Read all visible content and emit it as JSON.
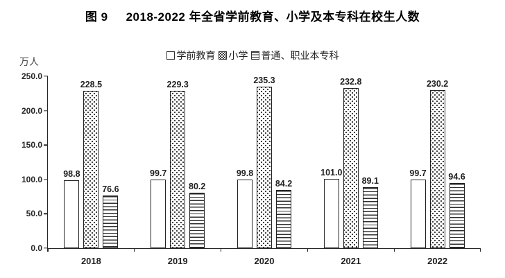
{
  "figure": {
    "title_prefix": "图 9",
    "title_main": "2018-2022 年全省学前教育、小学及本专科在校生人数"
  },
  "chart_data": {
    "type": "bar",
    "title": "图 9 2018-2022 年全省学前教育、小学及本专科在校生人数",
    "unit_label": "万人",
    "xlabel": "",
    "ylabel": "万人",
    "ylim": [
      0,
      250
    ],
    "y_ticks": [
      250,
      200,
      150,
      100,
      50,
      0
    ],
    "y_tick_labels": [
      "250.0",
      "200.0",
      "150.0",
      "100.0",
      "50.0",
      "0.0"
    ],
    "grid": false,
    "legend_position": "top",
    "categories": [
      "2018",
      "2019",
      "2020",
      "2021",
      "2022"
    ],
    "series": [
      {
        "key": "preschool",
        "name": "学前教育",
        "pattern": "plain",
        "values": [
          98.8,
          99.7,
          99.8,
          101.0,
          99.7
        ],
        "labels": [
          "98.8",
          "99.7",
          "99.8",
          "101.0",
          "99.7"
        ]
      },
      {
        "key": "primary-school",
        "name": "小学",
        "pattern": "dots",
        "values": [
          228.5,
          229.3,
          235.3,
          232.8,
          230.2
        ],
        "labels": [
          "228.5",
          "229.3",
          "235.3",
          "232.8",
          "230.2"
        ]
      },
      {
        "key": "college",
        "name": "普通、职业本专科",
        "pattern": "hlines",
        "values": [
          76.6,
          80.2,
          84.2,
          89.1,
          94.6
        ],
        "labels": [
          "76.6",
          "80.2",
          "84.2",
          "89.1",
          "94.6"
        ]
      }
    ],
    "colors": {
      "axis": "#262626",
      "bar_border": "#222222",
      "text": "#1f1f1f",
      "pattern_ink": "#2e2e2e"
    }
  }
}
